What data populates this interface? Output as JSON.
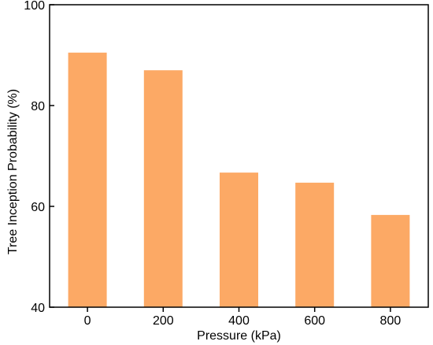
{
  "chart_data": {
    "type": "bar",
    "title": "",
    "xlabel": "Pressure (kPa)",
    "ylabel": "Tree Inception Probability (%)",
    "categories": [
      "0",
      "200",
      "400",
      "600",
      "800"
    ],
    "values": [
      90.5,
      87.0,
      66.7,
      64.7,
      58.3
    ],
    "ylim": [
      40,
      100
    ],
    "yticks": [
      "40",
      "60",
      "80",
      "100"
    ],
    "grid": false,
    "legend": "none",
    "colors": {
      "bar": "#FCA965",
      "axis": "#000000"
    }
  }
}
